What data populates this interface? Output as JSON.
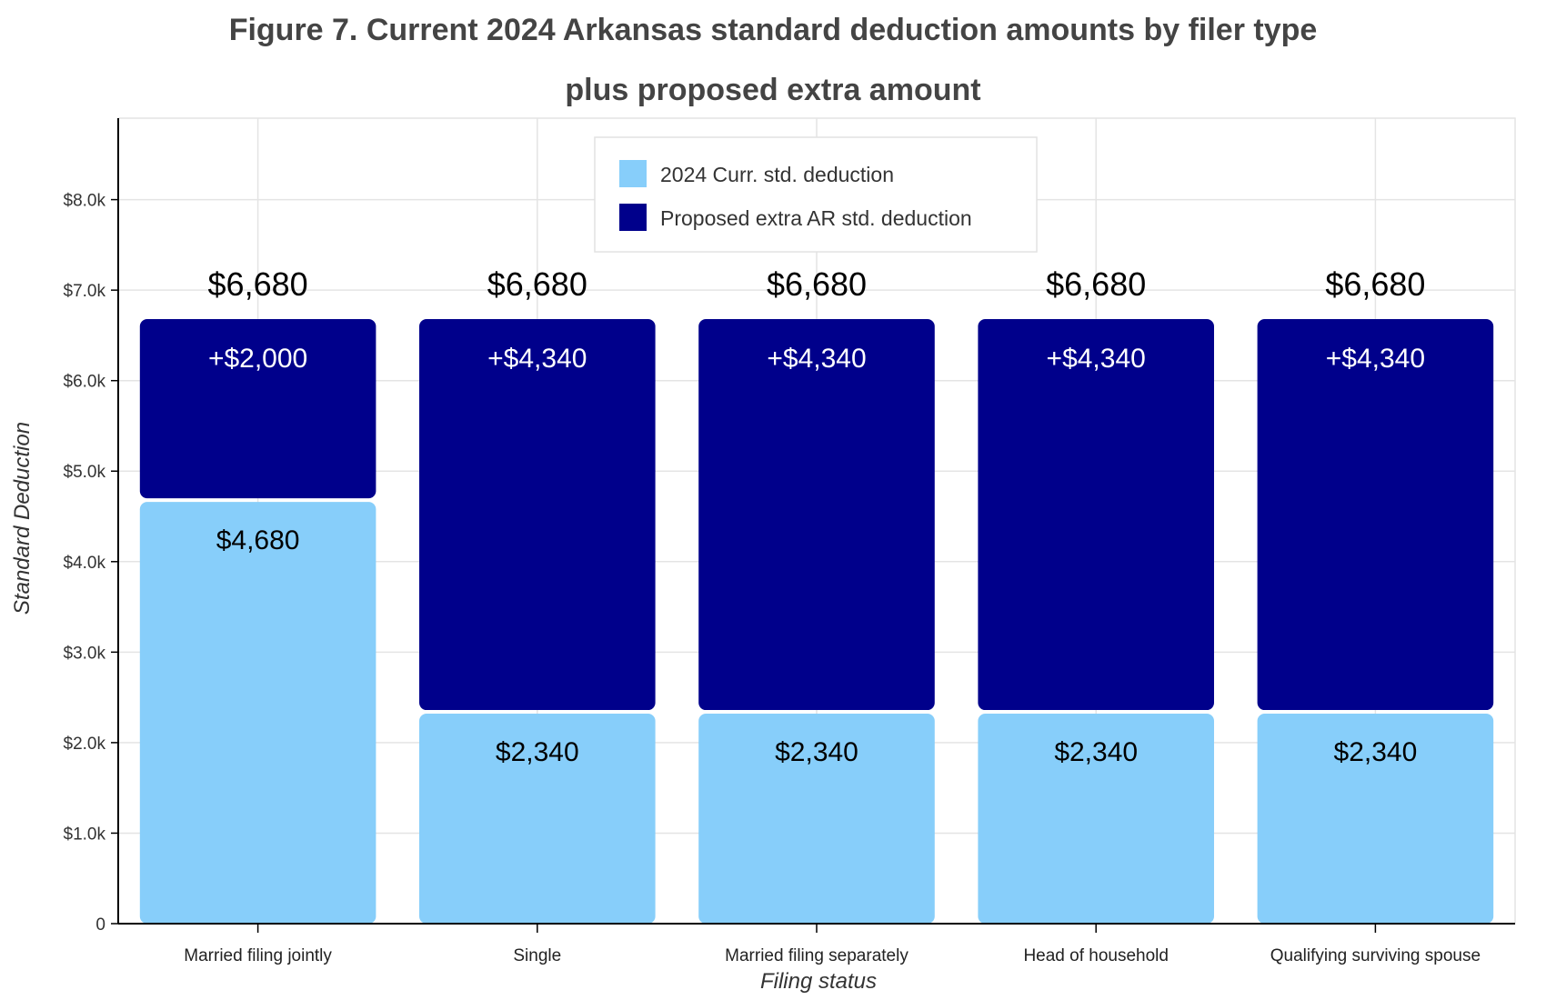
{
  "chart_data": {
    "type": "bar",
    "stacked": true,
    "title_line1": "Figure 7. Current 2024 Arkansas standard deduction amounts by filer type",
    "title_line2": "plus proposed extra amount",
    "xlabel": "Filing status",
    "ylabel": "Standard Deduction",
    "categories": [
      "Married filing jointly",
      "Single",
      "Married filing separately",
      "Head of household",
      "Qualifying surviving spouse"
    ],
    "series": [
      {
        "name": "2024 Curr. std. deduction",
        "color": "#87cefa",
        "values": [
          4680,
          2340,
          2340,
          2340,
          2340
        ],
        "labels": [
          "$4,680",
          "$2,340",
          "$2,340",
          "$2,340",
          "$2,340"
        ]
      },
      {
        "name": "Proposed extra AR std. deduction",
        "color": "#00008b",
        "values": [
          2000,
          4340,
          4340,
          4340,
          4340
        ],
        "labels": [
          "+$2,000",
          "+$4,340",
          "+$4,340",
          "+$4,340",
          "+$4,340"
        ]
      }
    ],
    "totals": [
      6680,
      6680,
      6680,
      6680,
      6680
    ],
    "total_labels": [
      "$6,680",
      "$6,680",
      "$6,680",
      "$6,680",
      "$6,680"
    ],
    "ylim": [
      0,
      8900
    ],
    "yticks": [
      0,
      1000,
      2000,
      3000,
      4000,
      5000,
      6000,
      7000,
      8000
    ],
    "ytick_labels": [
      "0",
      "$1.0k",
      "$2.0k",
      "$3.0k",
      "$4.0k",
      "$5.0k",
      "$6.0k",
      "$7.0k",
      "$8.0k"
    ],
    "grid": true,
    "legend_position": "top-center"
  }
}
